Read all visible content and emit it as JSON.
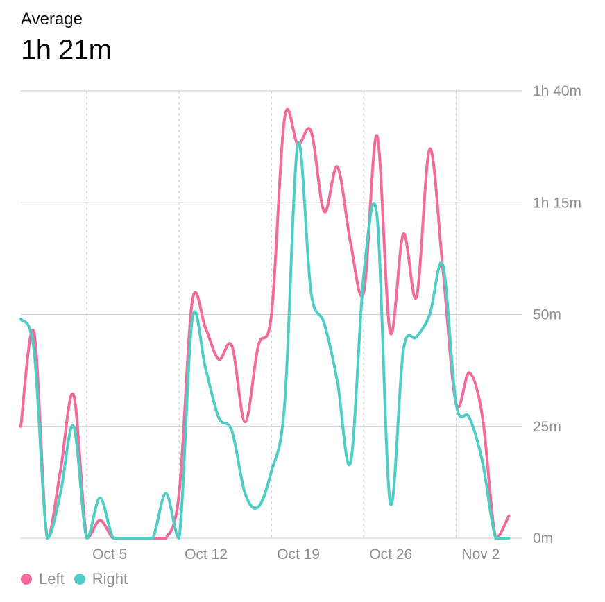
{
  "header": {
    "label": "Average",
    "value": "1h 21m"
  },
  "colors": {
    "left": "#f26b9a",
    "right": "#4ecdc4",
    "grid": "#d1d1d6",
    "axis_text": "#8e8e93"
  },
  "legend": [
    {
      "name": "Left",
      "color": "#f26b9a"
    },
    {
      "name": "Right",
      "color": "#4ecdc4"
    }
  ],
  "chart_data": {
    "type": "line",
    "title": "",
    "xlabel": "",
    "ylabel": "",
    "x_tick_labels": [
      "Oct 5",
      "Oct 12",
      "Oct 19",
      "Oct 26",
      "Nov 2"
    ],
    "x_tick_days": [
      5,
      12,
      19,
      26,
      33
    ],
    "y_tick_labels": [
      "0m",
      "25m",
      "50m",
      "1h 15m",
      "1h 40m"
    ],
    "y_tick_values": [
      0,
      25,
      50,
      75,
      100
    ],
    "ylim": [
      0,
      100
    ],
    "xlim": [
      0,
      38.5
    ],
    "grid": true,
    "y_axis_position": "right",
    "series": [
      {
        "name": "Left",
        "color": "#f26b9a",
        "points": [
          [
            0,
            25
          ],
          [
            1,
            46
          ],
          [
            2,
            0
          ],
          [
            3,
            15
          ],
          [
            4,
            32
          ],
          [
            5,
            0
          ],
          [
            6,
            4
          ],
          [
            7,
            0
          ],
          [
            8,
            0
          ],
          [
            9,
            0
          ],
          [
            10,
            0
          ],
          [
            11,
            0
          ],
          [
            12,
            10
          ],
          [
            13,
            53
          ],
          [
            14,
            47
          ],
          [
            15,
            40
          ],
          [
            16,
            43
          ],
          [
            17,
            26
          ],
          [
            18,
            43
          ],
          [
            19,
            50
          ],
          [
            20,
            94
          ],
          [
            21,
            88
          ],
          [
            22,
            91
          ],
          [
            23,
            73
          ],
          [
            24,
            83
          ],
          [
            25,
            66
          ],
          [
            26,
            55
          ],
          [
            27,
            90
          ],
          [
            28,
            46
          ],
          [
            29,
            68
          ],
          [
            30,
            54
          ],
          [
            31,
            87
          ],
          [
            32,
            60
          ],
          [
            33,
            30
          ],
          [
            34,
            37
          ],
          [
            35,
            27
          ],
          [
            36,
            0
          ],
          [
            37,
            5
          ]
        ]
      },
      {
        "name": "Right",
        "color": "#4ecdc4",
        "points": [
          [
            0,
            49
          ],
          [
            1,
            42
          ],
          [
            2,
            0
          ],
          [
            3,
            10
          ],
          [
            4,
            25
          ],
          [
            5,
            0
          ],
          [
            6,
            9
          ],
          [
            7,
            0
          ],
          [
            8,
            0
          ],
          [
            9,
            0
          ],
          [
            10,
            0
          ],
          [
            11,
            10
          ],
          [
            12,
            0
          ],
          [
            13,
            49
          ],
          [
            14,
            38
          ],
          [
            15,
            27
          ],
          [
            16,
            24
          ],
          [
            17,
            10
          ],
          [
            18,
            7
          ],
          [
            19,
            15
          ],
          [
            20,
            30
          ],
          [
            21,
            88
          ],
          [
            22,
            55
          ],
          [
            23,
            48
          ],
          [
            24,
            35
          ],
          [
            25,
            17
          ],
          [
            26,
            59
          ],
          [
            27,
            72
          ],
          [
            28,
            8
          ],
          [
            29,
            42
          ],
          [
            30,
            45
          ],
          [
            31,
            50
          ],
          [
            32,
            61
          ],
          [
            33,
            30
          ],
          [
            34,
            27
          ],
          [
            35,
            17
          ],
          [
            36,
            0
          ],
          [
            37,
            0
          ]
        ]
      }
    ]
  }
}
